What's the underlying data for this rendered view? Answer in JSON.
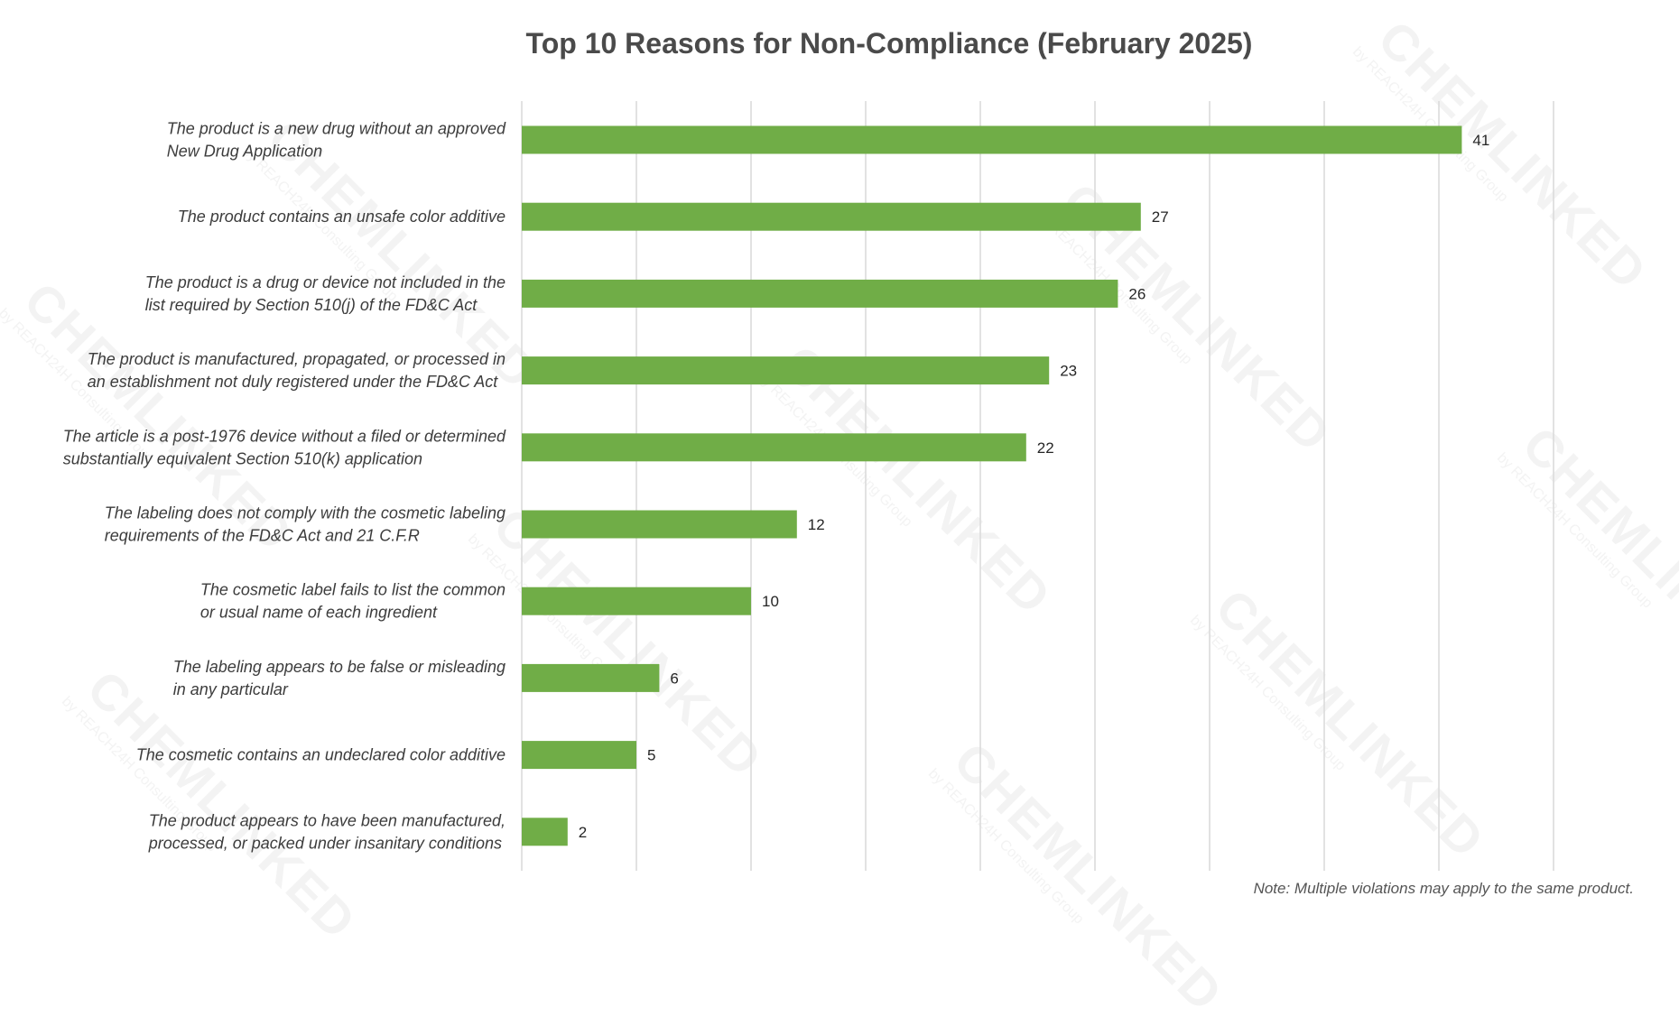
{
  "chart_data": {
    "type": "bar",
    "orientation": "horizontal",
    "title": "Top 10 Reasons for Non-Compliance (February 2025)",
    "categories": [
      [
        "The product is a new drug without an approved",
        "New Drug Application"
      ],
      [
        "The product contains an unsafe color additive"
      ],
      [
        "The product is a drug or device not included in the",
        "list required by Section 510(j) of the FD&C Act"
      ],
      [
        "The product is manufactured, propagated, or processed in",
        "an establishment not duly registered under the FD&C Act"
      ],
      [
        "The article is a post-1976 device without a filed or determined",
        "substantially equivalent Section 510(k) application"
      ],
      [
        "The labeling does not comply with the cosmetic labeling",
        "requirements of the FD&C Act and 21 C.F.R"
      ],
      [
        "The cosmetic label fails to list the common",
        "or usual name of each ingredient"
      ],
      [
        "The labeling appears to be false or misleading",
        "in any particular"
      ],
      [
        "The cosmetic contains an undeclared color additive"
      ],
      [
        "The product appears to have been manufactured,",
        "processed, or packed under insanitary conditions"
      ]
    ],
    "values": [
      41,
      27,
      26,
      23,
      22,
      12,
      10,
      6,
      5,
      2
    ],
    "xlim": [
      0,
      45
    ],
    "grid": true,
    "bar_color": "#70ad47",
    "note": "Note: Multiple violations may apply to the same product."
  },
  "watermark": {
    "brand": "CHEMLINKED",
    "sub": "by REACH24H Consulting Group"
  }
}
